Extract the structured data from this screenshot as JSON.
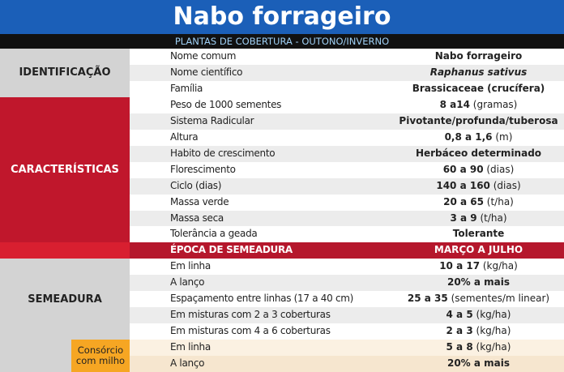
{
  "header": {
    "title": "Nabo forrageiro",
    "subtitle": "PLANTAS DE COBERTURA - OUTONO/INVERNO"
  },
  "groups": [
    {
      "label": "IDENTIFICAÇÃO",
      "rows": [
        {
          "name": "Nome comum",
          "value": "Nabo forrageiro"
        },
        {
          "name": "Nome científico",
          "value": "Raphanus sativus",
          "italic": true
        },
        {
          "name": "Família",
          "value": "Brassicaceae (crucífera)"
        }
      ]
    },
    {
      "label": "CARACTERÍSTICAS",
      "rows": [
        {
          "name": "Peso de 1000 sementes",
          "value": "8 a14",
          "unit": "(gramas)"
        },
        {
          "name": "Sistema Radicular",
          "value": "Pivotante/profunda/tuberosa"
        },
        {
          "name": "Altura",
          "value": "0,8 a 1,6",
          "unit": "(m)"
        },
        {
          "name": "Habito de crescimento",
          "value": "Herbáceo determinado"
        },
        {
          "name": "Florescimento",
          "value": "60 a 90",
          "unit": "(dias)"
        },
        {
          "name": "Ciclo (dias)",
          "value": "140 a 160",
          "unit": "(dias)"
        },
        {
          "name": "Massa verde",
          "value": "20 a 65",
          "unit": "(t/ha)"
        },
        {
          "name": "Massa seca",
          "value": "3 a 9",
          "unit": "(t/ha)"
        },
        {
          "name": "Tolerância a geada",
          "value": "Tolerante"
        }
      ]
    },
    {
      "label": "SEMEADURA",
      "rows": [
        {
          "name": "Em linha",
          "value": "10 a 17",
          "unit": "(kg/ha)"
        },
        {
          "name": "A lanço",
          "value": "20% a mais"
        },
        {
          "name": "Espaçamento entre linhas (17 a 40 cm)",
          "value": "25 a 35",
          "unit": "(sementes/m linear)"
        },
        {
          "name": "Em misturas com 2 a 3 coberturas",
          "value": "4 a 5",
          "unit": "(kg/ha)"
        },
        {
          "name": "Em misturas com 4 a 6 coberturas",
          "value": "2 a 3",
          "unit": "(kg/ha)"
        }
      ]
    },
    {
      "label": "Consórcio com milho",
      "rows": [
        {
          "name": "Em linha",
          "value": "5 a 8",
          "unit": "(kg/ha)"
        },
        {
          "name": "A lanço",
          "value": "20% a mais"
        }
      ]
    }
  ],
  "sowing_period": {
    "name": "ÉPOCA DE SEMEADURA",
    "value": "MARÇO A JULHO"
  }
}
